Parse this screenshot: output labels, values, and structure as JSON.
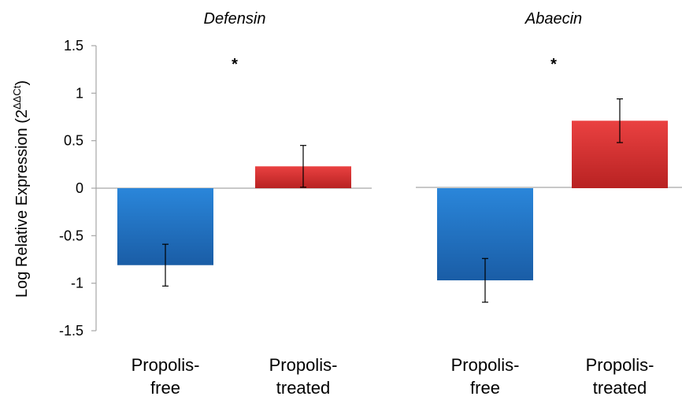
{
  "chart_data": [
    {
      "type": "bar",
      "title": "Defensin",
      "ylabel": "Log Relative Expression (2",
      "ylabel_sup": "ΔΔCt",
      "ylabel_close": ")",
      "ylim": [
        -1.5,
        1.5
      ],
      "yticks": [
        1.5,
        1,
        0.5,
        0,
        -0.5,
        -1,
        -1.5
      ],
      "ytick_labels": [
        "1.5",
        "1",
        "0.5",
        "0",
        "-0.5",
        "-1",
        "-1.5"
      ],
      "categories": [
        [
          "Propolis-",
          "free"
        ],
        [
          "Propolis-",
          "treated"
        ]
      ],
      "values": [
        -0.81,
        0.23
      ],
      "errors": [
        0.22,
        0.22
      ],
      "colors": [
        "#1f6fc2",
        "#d93030"
      ],
      "significance": "*"
    },
    {
      "type": "bar",
      "title": "Abaecin",
      "ylim": [
        -1.5,
        1.5
      ],
      "categories": [
        [
          "Propolis-",
          "free"
        ],
        [
          "Propolis-",
          "treated"
        ]
      ],
      "values": [
        -0.97,
        0.71
      ],
      "errors": [
        0.23,
        0.23
      ],
      "colors": [
        "#1f6fc2",
        "#d93030"
      ],
      "significance": "*"
    }
  ]
}
